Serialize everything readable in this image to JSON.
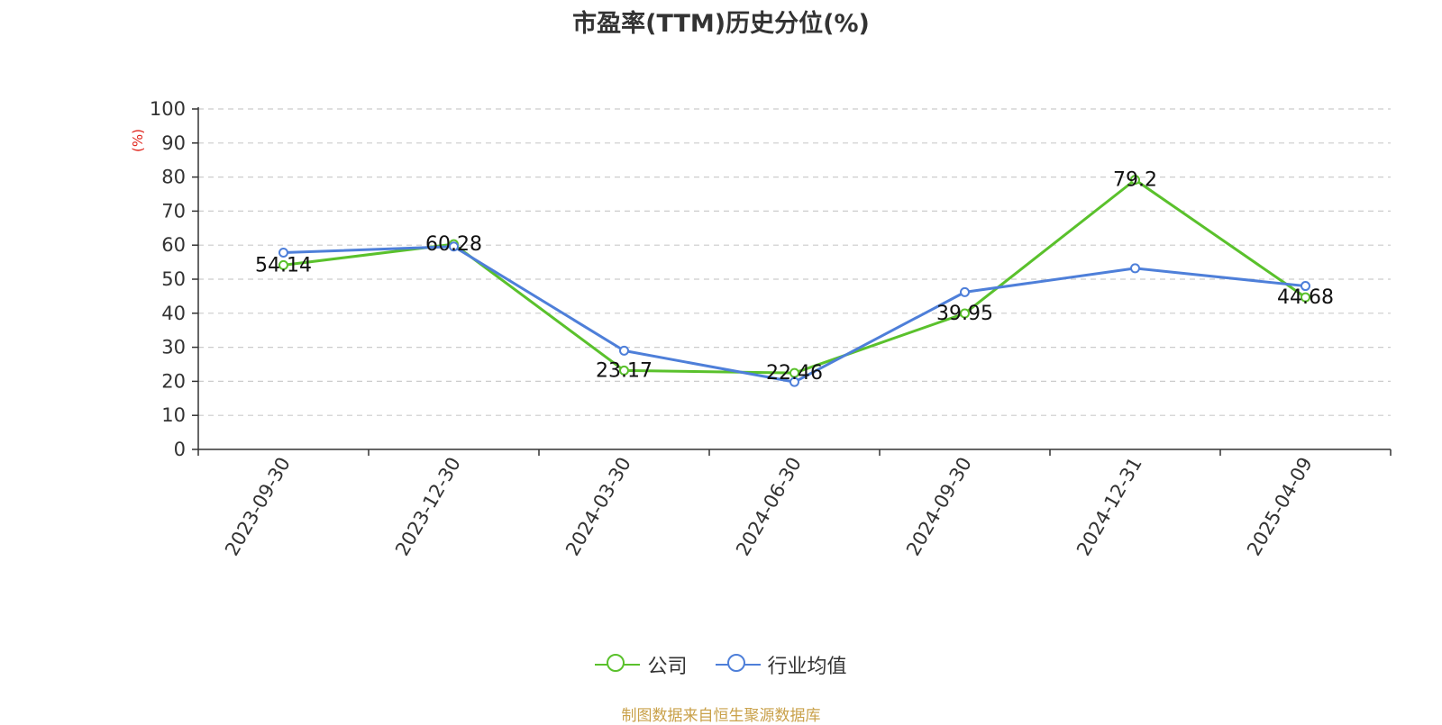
{
  "chart_data": {
    "type": "line",
    "title": "市盈率(TTM)历史分位(%)",
    "ylabel": "(%)",
    "xlabel": "",
    "ylim": [
      0,
      100
    ],
    "yticks": [
      0,
      10,
      20,
      30,
      40,
      50,
      60,
      70,
      80,
      90,
      100
    ],
    "grid": true,
    "legend_position": "bottom-center",
    "categories": [
      "2023-09-30",
      "2023-12-30",
      "2024-03-30",
      "2024-06-30",
      "2024-09-30",
      "2024-12-31",
      "2025-04-09"
    ],
    "series": [
      {
        "name": "公司",
        "color": "#5ac12c",
        "values": [
          54.14,
          60.28,
          23.17,
          22.46,
          39.95,
          79.2,
          44.68
        ],
        "labels": [
          "54.14",
          "60.28",
          "23.17",
          "22.46",
          "39.95",
          "79.2",
          "44.68"
        ]
      },
      {
        "name": "行业均值",
        "color": "#4e7fd9",
        "values": [
          57.8,
          59.6,
          29.0,
          19.8,
          46.2,
          53.2,
          48.0
        ]
      }
    ]
  },
  "source": "制图数据来自恒生聚源数据库"
}
